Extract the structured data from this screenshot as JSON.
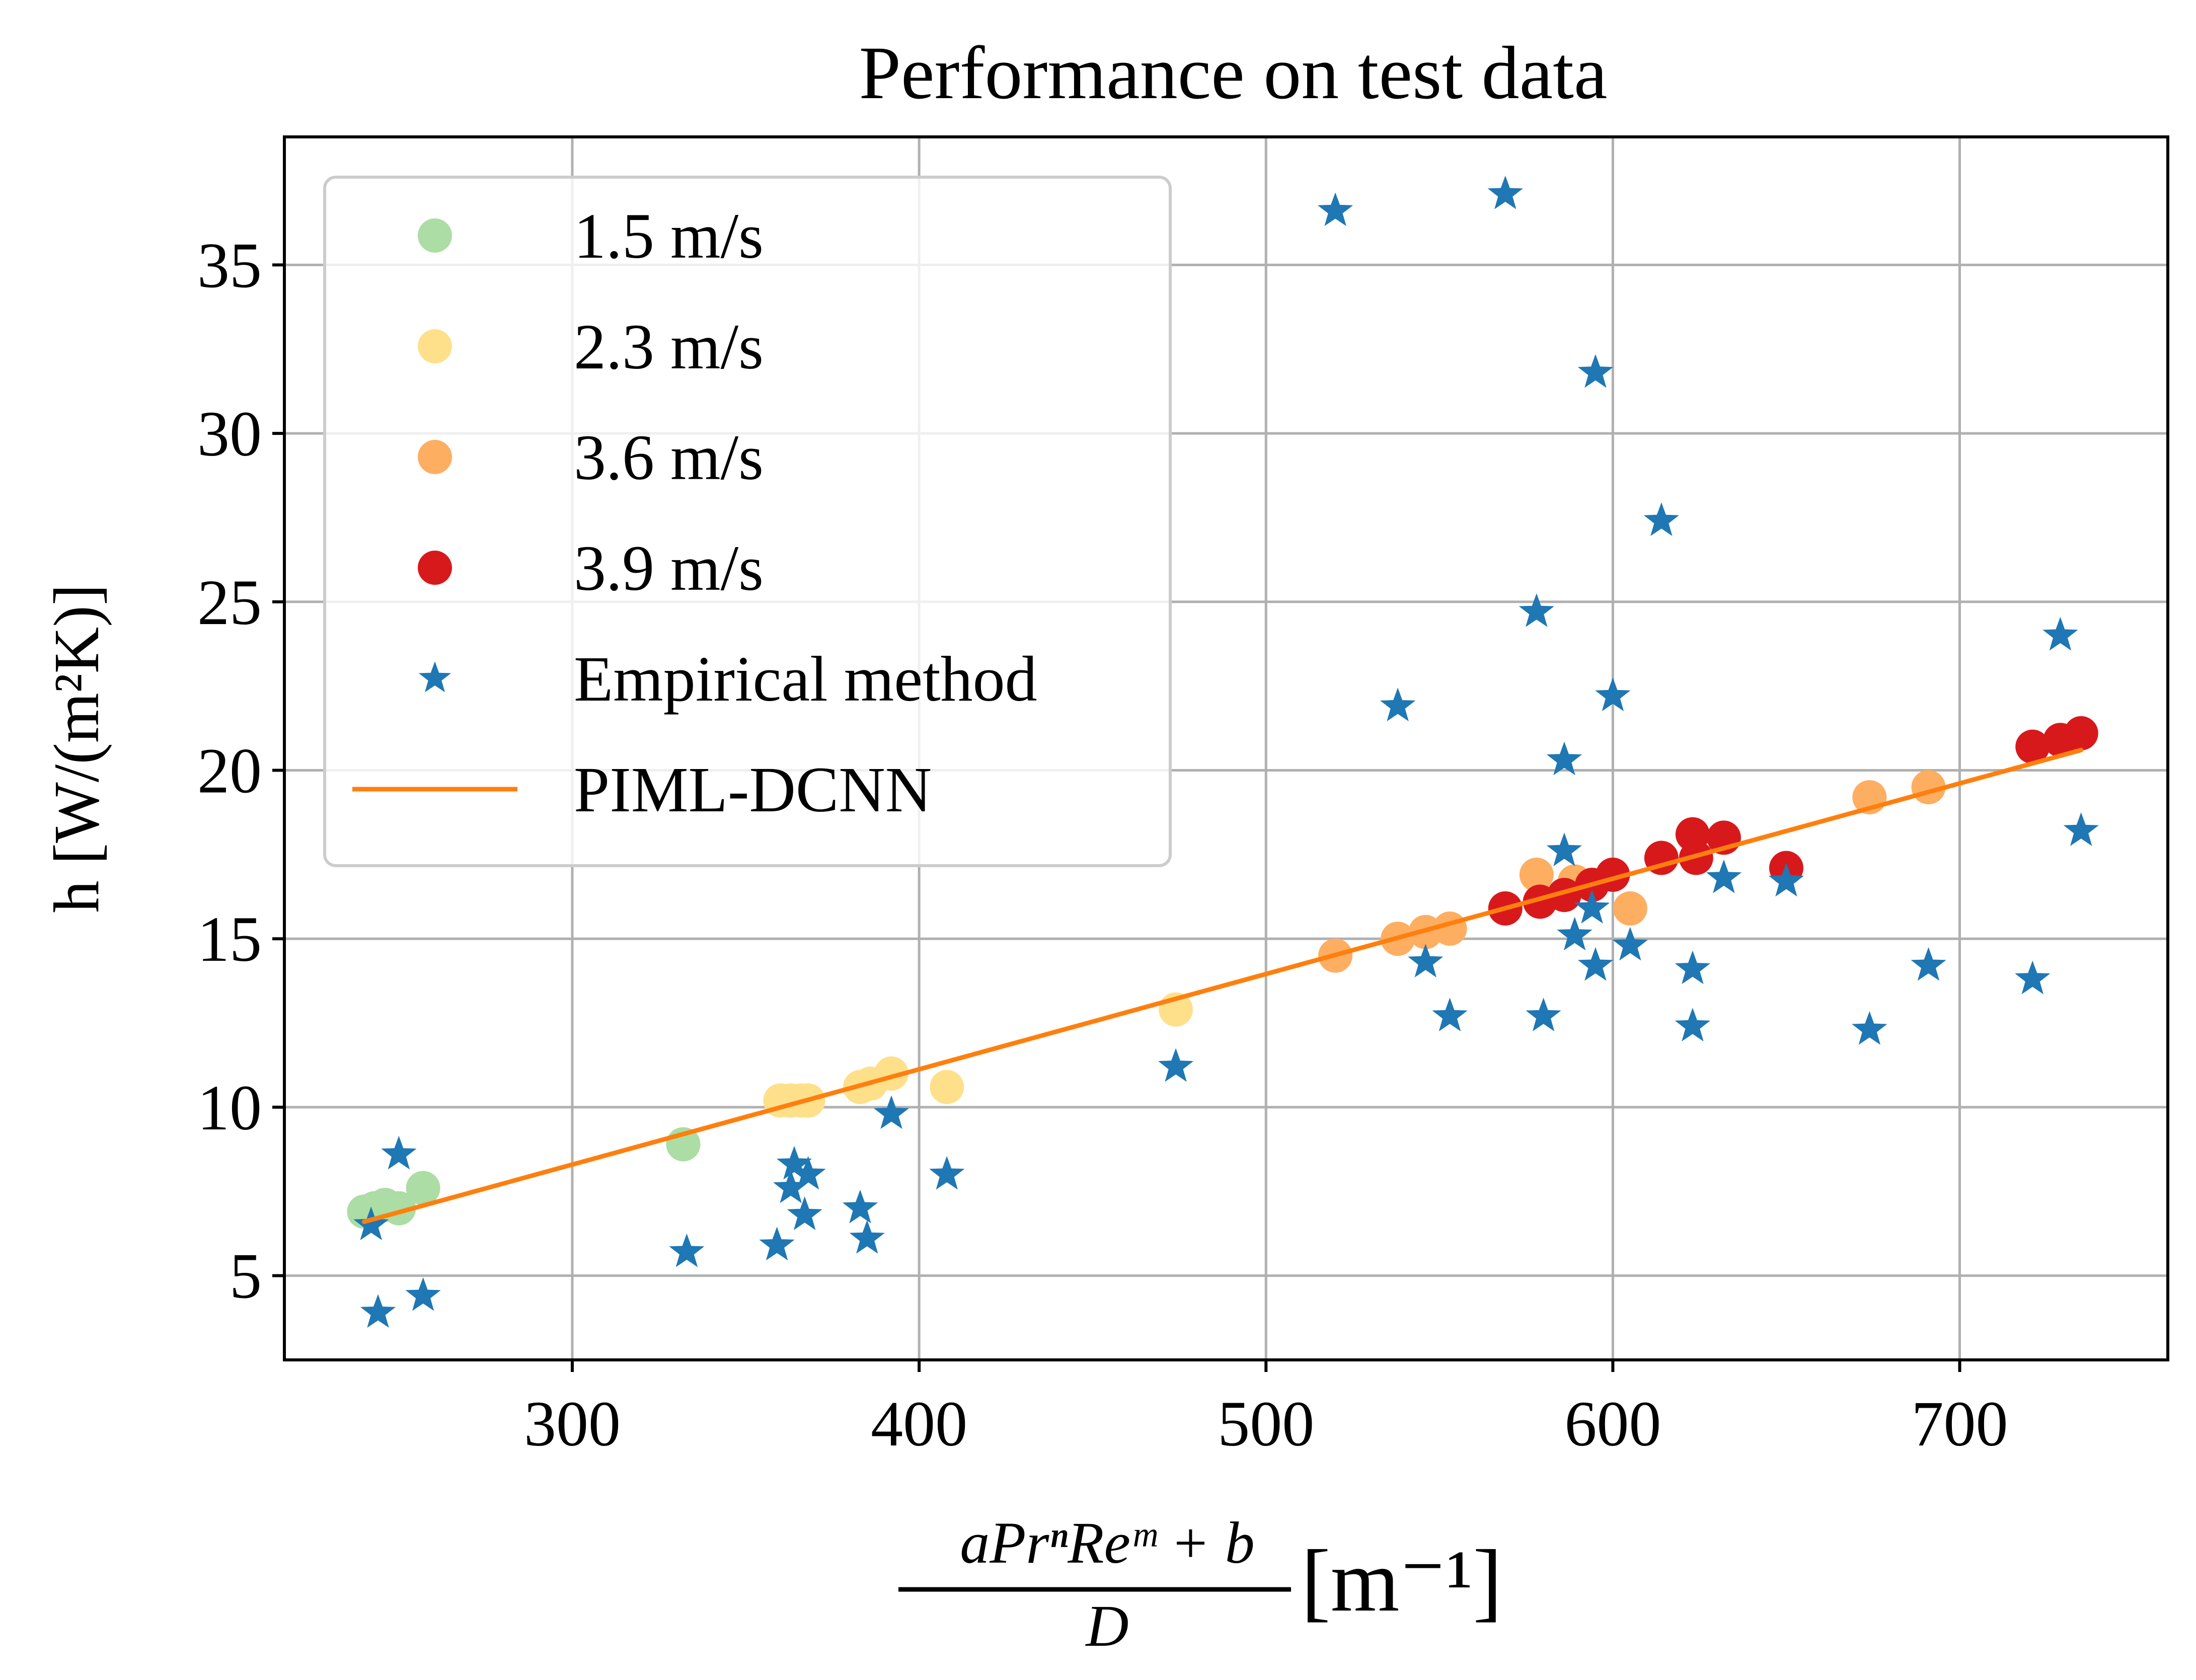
{
  "chart_data": {
    "type": "scatter",
    "title": "Performance on test data",
    "xlabel": {
      "numerator": "aPrⁿReᵐ + b",
      "denominator": "D",
      "unit": "[m⁻¹]"
    },
    "ylabel": "h [W/(m²K)]",
    "xlim": [
      217,
      760
    ],
    "ylim": [
      2.5,
      38.8
    ],
    "xticks": [
      300,
      400,
      500,
      600,
      700
    ],
    "yticks": [
      5,
      10,
      15,
      20,
      25,
      30,
      35
    ],
    "grid": true,
    "legend_position": "top-left",
    "series": [
      {
        "name": "1.5 m/s",
        "kind": "marker",
        "marker": "circle",
        "color": "#abdda4",
        "points": [
          [
            240,
            6.9
          ],
          [
            243,
            7.0
          ],
          [
            246,
            7.1
          ],
          [
            250,
            7.0
          ],
          [
            257,
            7.6
          ],
          [
            332,
            8.9
          ]
        ]
      },
      {
        "name": "2.3 m/s",
        "kind": "marker",
        "marker": "circle",
        "color": "#fee08b",
        "points": [
          [
            360,
            10.2
          ],
          [
            363,
            10.2
          ],
          [
            366,
            10.2
          ],
          [
            368,
            10.2
          ],
          [
            383,
            10.6
          ],
          [
            386,
            10.7
          ],
          [
            392,
            11.0
          ],
          [
            408,
            10.6
          ],
          [
            474,
            12.9
          ]
        ]
      },
      {
        "name": "3.6 m/s",
        "kind": "marker",
        "marker": "circle",
        "color": "#fdae61",
        "points": [
          [
            520,
            14.5
          ],
          [
            538,
            15.0
          ],
          [
            546,
            15.2
          ],
          [
            553,
            15.3
          ],
          [
            578,
            16.9
          ],
          [
            589,
            16.7
          ],
          [
            605,
            15.9
          ],
          [
            674,
            19.2
          ],
          [
            691,
            19.5
          ]
        ]
      },
      {
        "name": "3.9 m/s",
        "kind": "marker",
        "marker": "circle",
        "color": "#d7191c",
        "points": [
          [
            569,
            15.9
          ],
          [
            579,
            16.1
          ],
          [
            586,
            16.3
          ],
          [
            594,
            16.6
          ],
          [
            600,
            16.9
          ],
          [
            614,
            17.4
          ],
          [
            623,
            18.1
          ],
          [
            624,
            17.4
          ],
          [
            632,
            18.0
          ],
          [
            650,
            17.1
          ],
          [
            721,
            20.7
          ],
          [
            729,
            20.9
          ],
          [
            735,
            21.1
          ]
        ]
      },
      {
        "name": "Empirical method",
        "kind": "marker",
        "marker": "star",
        "color": "#1f77b4",
        "points": [
          [
            242,
            6.5
          ],
          [
            244,
            3.9
          ],
          [
            250,
            8.6
          ],
          [
            257,
            4.4
          ],
          [
            333,
            5.7
          ],
          [
            359,
            5.9
          ],
          [
            363,
            7.6
          ],
          [
            364,
            8.3
          ],
          [
            367,
            6.8
          ],
          [
            368,
            8.0
          ],
          [
            383,
            7.0
          ],
          [
            385,
            6.1
          ],
          [
            392,
            9.8
          ],
          [
            408,
            8.0
          ],
          [
            474,
            11.2
          ],
          [
            520,
            36.6
          ],
          [
            538,
            21.9
          ],
          [
            546,
            14.3
          ],
          [
            553,
            12.7
          ],
          [
            569,
            37.1
          ],
          [
            578,
            24.7
          ],
          [
            580,
            12.7
          ],
          [
            586,
            20.3
          ],
          [
            586,
            17.6
          ],
          [
            589,
            15.1
          ],
          [
            594,
            15.9
          ],
          [
            595,
            14.2
          ],
          [
            595,
            31.8
          ],
          [
            600,
            22.2
          ],
          [
            605,
            14.8
          ],
          [
            614,
            27.4
          ],
          [
            623,
            14.1
          ],
          [
            623,
            12.4
          ],
          [
            632,
            16.8
          ],
          [
            650,
            16.7
          ],
          [
            674,
            12.3
          ],
          [
            691,
            14.2
          ],
          [
            721,
            13.8
          ],
          [
            729,
            24.0
          ],
          [
            735,
            18.2
          ]
        ]
      },
      {
        "name": "PIML-DCNN",
        "kind": "line",
        "color": "#ff7f0e",
        "points": [
          [
            240,
            6.6
          ],
          [
            735,
            20.6
          ]
        ]
      }
    ]
  }
}
